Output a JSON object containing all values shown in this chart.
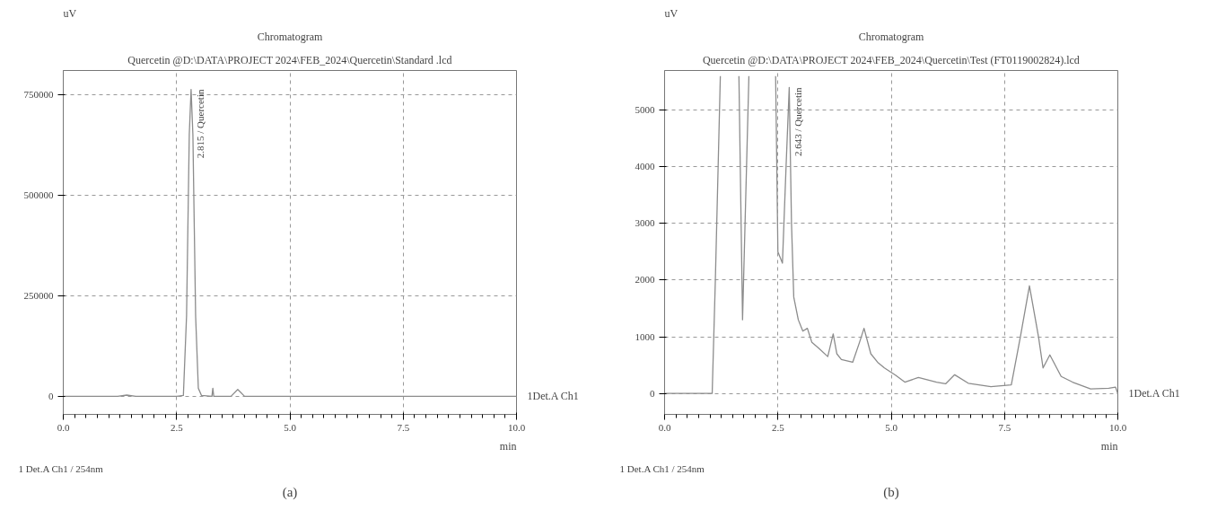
{
  "chart_data": [
    {
      "type": "line",
      "title": "Chromatogram",
      "subtitle": "Quercetin @D:\\DATA\\PROJECT 2024\\FEB_2024\\Quercetin\\Standard .lcd",
      "xlabel": "min",
      "ylabel": "uV",
      "grid": true,
      "line_style": "solid",
      "xlim": [
        0,
        10
      ],
      "ylim": [
        -45000,
        810000
      ],
      "xticks": [
        {
          "value": 0,
          "label": "0.0"
        },
        {
          "value": 2.5,
          "label": "2.5"
        },
        {
          "value": 5,
          "label": "5.0"
        },
        {
          "value": 7.5,
          "label": "7.5"
        },
        {
          "value": 10,
          "label": "10.0"
        }
      ],
      "yticks": [
        0,
        250000,
        500000,
        750000
      ],
      "series": [
        {
          "color": "#8c8c8c",
          "x": [
            0,
            1.2,
            1.4,
            1.6,
            2.5,
            2.65,
            2.72,
            2.78,
            2.82,
            2.86,
            2.92,
            2.98,
            3.05,
            3.28,
            3.3,
            3.32,
            3.7,
            3.85,
            4.0,
            10.0
          ],
          "values": [
            0,
            0,
            3000,
            0,
            0,
            2000,
            200000,
            650000,
            763000,
            650000,
            200000,
            20000,
            2000,
            0,
            20000,
            0,
            0,
            17000,
            0,
            0
          ]
        }
      ],
      "annotations": [
        {
          "text": "2.815 / Quercetin",
          "x": 2.815,
          "y": 763000
        },
        {
          "text": "1Det.A Ch1",
          "x": 10,
          "y": 0
        },
        "1   Det.A Ch1 / 254nm",
        "(a)"
      ]
    },
    {
      "type": "line",
      "title": "Chromatogram",
      "subtitle": "Quercetin @D:\\DATA\\PROJECT 2024\\FEB_2024\\Quercetin\\Test (FT0119002824).lcd",
      "xlabel": "min",
      "ylabel": "uV",
      "grid": true,
      "line_style": "solid",
      "xlim": [
        0,
        10
      ],
      "ylim": [
        -370,
        5700
      ],
      "xticks": [
        {
          "value": 0,
          "label": "0.0"
        },
        {
          "value": 2.5,
          "label": "2.5"
        },
        {
          "value": 5,
          "label": "5.0"
        },
        {
          "value": 7.5,
          "label": "7.5"
        },
        {
          "value": 10,
          "label": "10.0"
        }
      ],
      "yticks": [
        0,
        1000,
        2000,
        3000,
        4000,
        5000
      ],
      "series": [
        {
          "color": "#8c8c8c",
          "x": [
            0,
            1.05,
            1.12,
            1.23,
            1.4,
            1.64,
            1.72,
            1.86,
            2.1,
            2.45,
            2.5,
            2.6,
            2.68,
            2.75,
            2.8,
            2.85,
            2.95,
            3.05,
            3.15,
            3.25,
            3.4,
            3.6,
            3.72,
            3.8,
            3.9,
            4.15,
            4.3,
            4.4,
            4.55,
            4.7,
            4.85,
            5.1,
            5.3,
            5.6,
            6.0,
            6.2,
            6.4,
            6.7,
            7.2,
            7.65,
            7.85,
            8.05,
            8.25,
            8.35,
            8.5,
            8.75,
            9.0,
            9.4,
            9.8,
            9.95,
            10.0
          ],
          "values": [
            0,
            0,
            2000,
            5600,
            null,
            5600,
            1300,
            5600,
            null,
            5600,
            2500,
            2300,
            4000,
            5400,
            3000,
            1700,
            1300,
            1100,
            1150,
            900,
            800,
            650,
            1050,
            700,
            600,
            550,
            900,
            1150,
            700,
            550,
            450,
            320,
            200,
            280,
            200,
            170,
            330,
            180,
            120,
            150,
            1000,
            1900,
            1000,
            450,
            680,
            300,
            200,
            80,
            90,
            110,
            0
          ]
        }
      ],
      "annotations": [
        {
          "text": "2.643 / Quercetin",
          "x": 2.75,
          "y": 5400
        },
        {
          "text": "1Det.A Ch1",
          "x": 10,
          "y": 0
        },
        "1   Det.A Ch1 / 254nm",
        "(b)"
      ]
    }
  ]
}
